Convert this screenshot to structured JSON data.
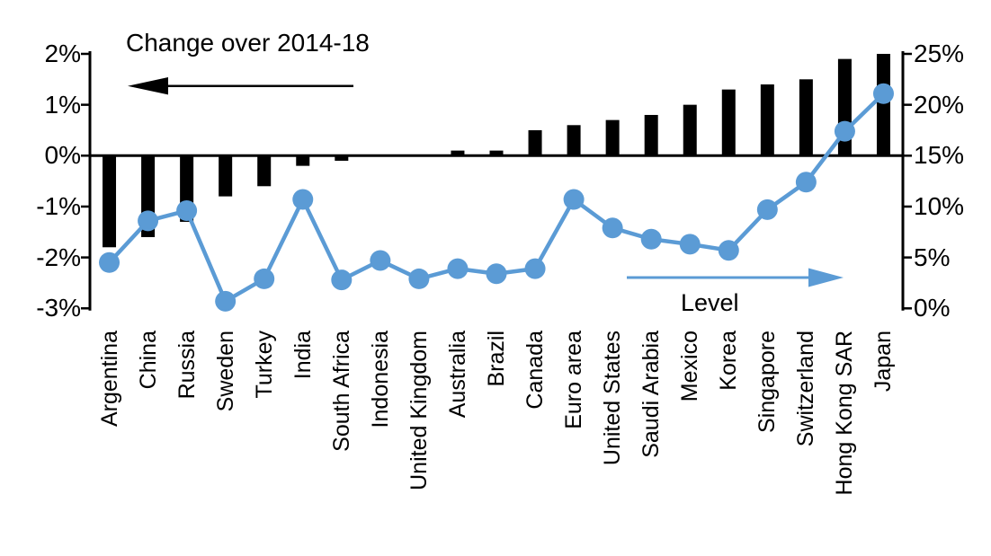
{
  "chart_data": {
    "type": "bar",
    "subtype": "bar-line-combo",
    "categories": [
      "Argentina",
      "China",
      "Russia",
      "Sweden",
      "Turkey",
      "India",
      "South Africa",
      "Indonesia",
      "United Kingdom",
      "Australia",
      "Brazil",
      "Canada",
      "Euro area",
      "United States",
      "Saudi Arabia",
      "Mexico",
      "Korea",
      "Singapore",
      "Switzerland",
      "Hong Kong SAR",
      "Japan"
    ],
    "series": [
      {
        "name": "Change over 2014-18",
        "type": "bar",
        "axis": "left",
        "color": "#000000",
        "values": [
          -1.8,
          -1.6,
          -1.3,
          -0.8,
          -0.6,
          -0.2,
          -0.1,
          0,
          0,
          0.1,
          0.1,
          0.5,
          0.6,
          0.7,
          0.8,
          1.0,
          1.3,
          1.4,
          1.5,
          1.9,
          2.0
        ]
      },
      {
        "name": "Level",
        "type": "line",
        "axis": "right",
        "color": "#5B9BD5",
        "values": [
          4.5,
          8.6,
          9.6,
          0.7,
          2.9,
          10.7,
          2.8,
          4.7,
          2.9,
          3.9,
          3.4,
          3.9,
          10.7,
          7.9,
          6.8,
          6.3,
          5.7,
          9.7,
          12.4,
          17.4,
          21.1
        ]
      }
    ],
    "left_axis": {
      "ticks": [
        "2%",
        "1%",
        "0%",
        "-1%",
        "-2%",
        "-3%"
      ],
      "values": [
        2,
        1,
        0,
        -1,
        -2,
        -3
      ],
      "range": [
        -3,
        2
      ]
    },
    "right_axis": {
      "ticks": [
        "25%",
        "20%",
        "15%",
        "10%",
        "5%",
        "0%"
      ],
      "values": [
        25,
        20,
        15,
        10,
        5,
        0
      ],
      "range": [
        0,
        25
      ]
    },
    "annotations": {
      "bar_label": "Change over 2014-18",
      "line_label": "Level"
    },
    "grid": "off",
    "axis_color": "#000000"
  }
}
